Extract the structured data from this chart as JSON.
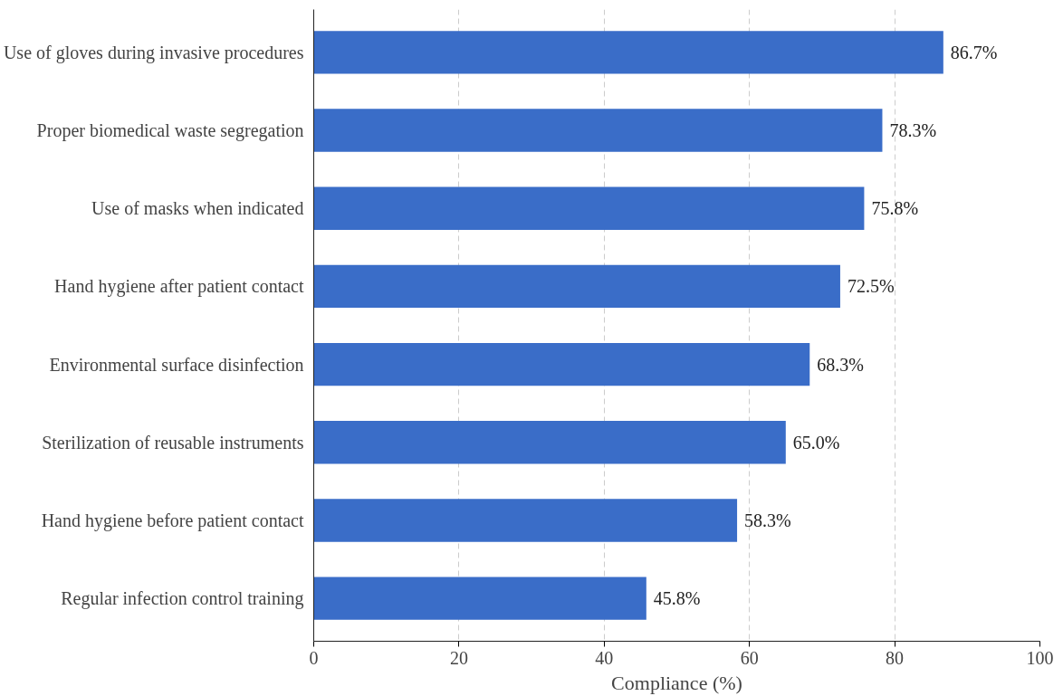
{
  "chart_data": {
    "type": "bar",
    "orientation": "horizontal",
    "xlabel": "Compliance (%)",
    "categories": [
      "Use of gloves during invasive procedures",
      "Proper biomedical waste segregation",
      "Use of masks when indicated",
      "Hand hygiene after patient contact",
      "Environmental surface disinfection",
      "Sterilization of reusable instruments",
      "Hand hygiene before patient contact",
      "Regular infection control training"
    ],
    "values": [
      86.7,
      78.3,
      75.8,
      72.5,
      68.3,
      65.0,
      58.3,
      45.8
    ],
    "value_labels": [
      "86.7%",
      "78.3%",
      "75.8%",
      "72.5%",
      "68.3%",
      "65.0%",
      "58.3%",
      "45.8%"
    ],
    "color": "#3a6dc8",
    "xlim": [
      0,
      100
    ],
    "xticks": [
      0,
      20,
      40,
      60,
      80,
      100
    ],
    "grid": "x"
  }
}
